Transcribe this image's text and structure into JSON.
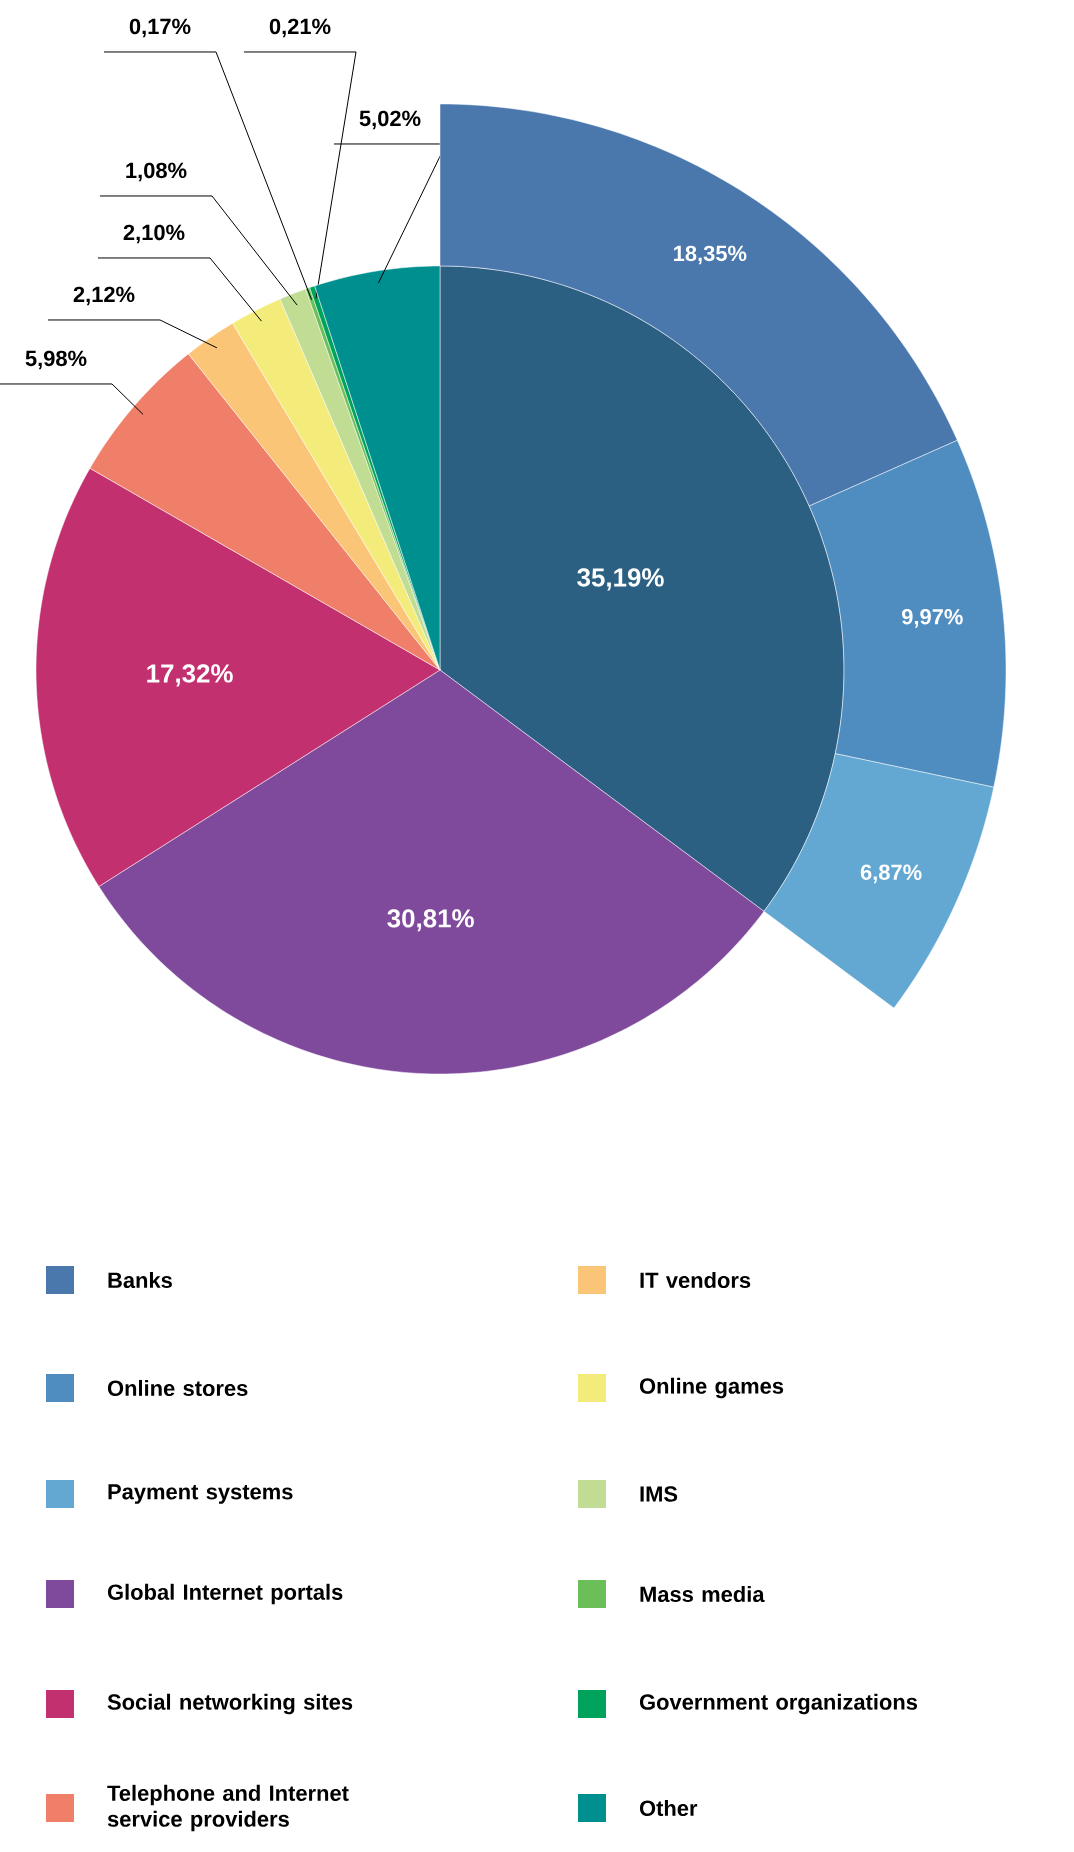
{
  "chart_data": {
    "type": "pie",
    "categories": [
      "Banks",
      "Online stores",
      "Payment systems",
      "Global Internet portals",
      "Social networking sites",
      "Telephone and Internet service providers",
      "IT vendors",
      "Online games",
      "IMS",
      "Mass media",
      "Government organizations",
      "Other"
    ],
    "series": [
      {
        "values": [
          35.19,
          null,
          null,
          30.81,
          17.32,
          5.98,
          2.12,
          2.1,
          1.08,
          0.17,
          0.21,
          5.02
        ],
        "value_labels": [
          "35,19%",
          null,
          null,
          "30,81%",
          "17,32%",
          "5,98%",
          "2,12%",
          "2,10%",
          "1,08%",
          "0,17%",
          "0,21%",
          "5,02%"
        ],
        "colors": [
          "#2c6083",
          null,
          null,
          "#7f4a9c",
          "#c3306f",
          "#f07f6a",
          "#fbc578",
          "#f4ec7a",
          "#c1dc93",
          "#6cbe58",
          "#00a35b",
          "#008f8f"
        ]
      },
      {
        "values": [
          18.35,
          9.97,
          6.87,
          null,
          null,
          null,
          null,
          null,
          null,
          null,
          null,
          null
        ],
        "value_labels": [
          "18,35%",
          "9,97%",
          "6,87%",
          null,
          null,
          null,
          null,
          null,
          null,
          null,
          null,
          null
        ],
        "colors": [
          "#4a78ad",
          "#4f8cc0",
          "#62a8d2",
          null,
          null,
          null,
          null,
          null,
          null,
          null,
          null,
          null
        ]
      }
    ],
    "legend": "bottom"
  }
}
